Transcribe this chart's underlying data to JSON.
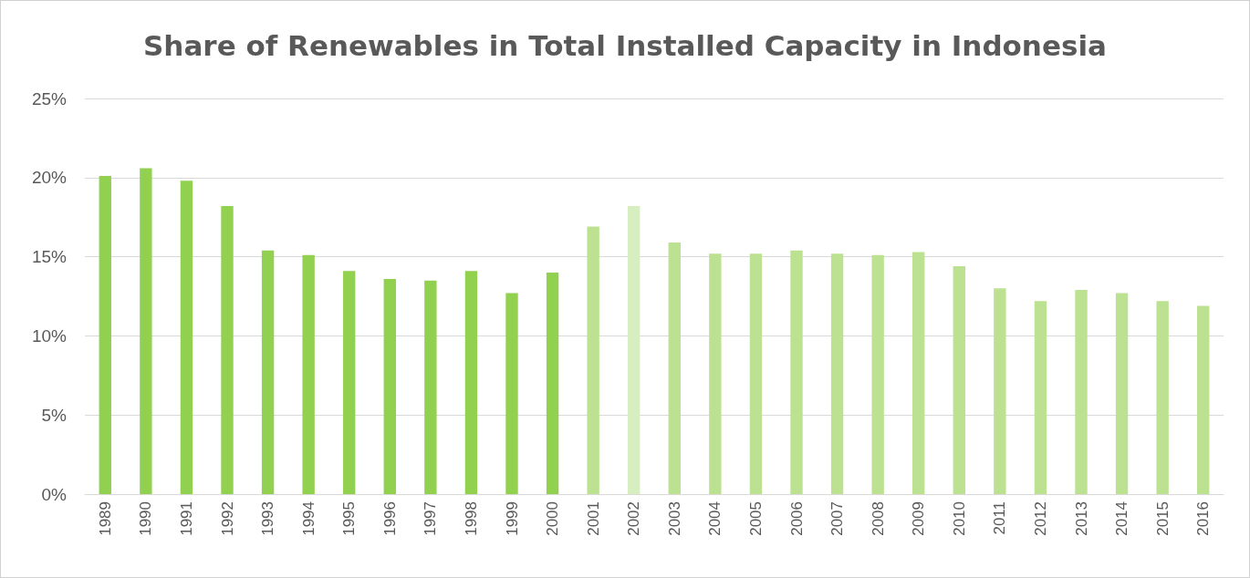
{
  "chart_data": {
    "type": "bar",
    "title": "Share of Renewables in Total Installed Capacity in Indonesia",
    "categories": [
      "1989",
      "1990",
      "1991",
      "1992",
      "1993",
      "1994",
      "1995",
      "1996",
      "1997",
      "1998",
      "1999",
      "2000",
      "2001",
      "2002",
      "2003",
      "2004",
      "2005",
      "2006",
      "2007",
      "2008",
      "2009",
      "2010",
      "2011",
      "2012",
      "2013",
      "2014",
      "2015",
      "2016"
    ],
    "values": [
      20.1,
      20.6,
      19.8,
      18.2,
      15.4,
      15.1,
      14.1,
      13.6,
      13.5,
      14.1,
      12.7,
      14.0,
      16.9,
      18.2,
      15.9,
      15.2,
      15.2,
      15.4,
      15.2,
      15.1,
      15.3,
      14.4,
      13.0,
      12.2,
      12.9,
      12.7,
      12.2,
      11.9
    ],
    "colors": [
      "#92d050",
      "#92d050",
      "#92d050",
      "#92d050",
      "#92d050",
      "#92d050",
      "#92d050",
      "#92d050",
      "#92d050",
      "#92d050",
      "#92d050",
      "#92d050",
      "#bbe191",
      "#d6eec0",
      "#bbe191",
      "#bbe191",
      "#bbe191",
      "#bbe191",
      "#bbe191",
      "#bbe191",
      "#bbe191",
      "#bbe191",
      "#bbe191",
      "#bbe191",
      "#bbe191",
      "#bbe191",
      "#bbe191",
      "#bbe191"
    ],
    "ylim": [
      0,
      25
    ],
    "yticks": [
      {
        "value": 0,
        "label": "0%"
      },
      {
        "value": 5,
        "label": "5%"
      },
      {
        "value": 10,
        "label": "10%"
      },
      {
        "value": 15,
        "label": "15%"
      },
      {
        "value": 20,
        "label": "20%"
      },
      {
        "value": 25,
        "label": "25%"
      }
    ],
    "grid": "y"
  }
}
